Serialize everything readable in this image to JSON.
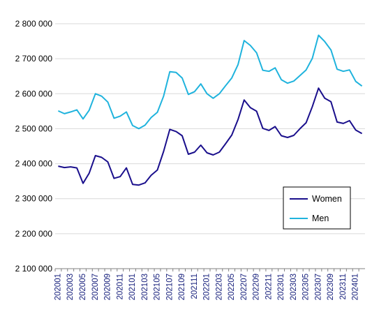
{
  "chart_data": {
    "type": "line",
    "title": "",
    "xlabel": "",
    "ylabel": "",
    "ylim": [
      2100000,
      2800000
    ],
    "yticks": [
      "2 100 000",
      "2 200 000",
      "2 300 000",
      "2 400 000",
      "2 500 000",
      "2 600 000",
      "2 700 000",
      "2 800 000"
    ],
    "yticks_values": [
      2100000,
      2200000,
      2300000,
      2400000,
      2500000,
      2600000,
      2700000,
      2800000
    ],
    "grid": true,
    "legend_position": "bottom-right",
    "x": [
      "202001",
      "202002",
      "202003",
      "202004",
      "202005",
      "202006",
      "202007",
      "202008",
      "202009",
      "202010",
      "202011",
      "202012",
      "202101",
      "202102",
      "202103",
      "202104",
      "202105",
      "202106",
      "202107",
      "202108",
      "202109",
      "202110",
      "202111",
      "202112",
      "202201",
      "202202",
      "202203",
      "202204",
      "202205",
      "202206",
      "202207",
      "202208",
      "202209",
      "202210",
      "202211",
      "202212",
      "202301",
      "202302",
      "202303",
      "202304",
      "202305",
      "202306",
      "202307",
      "202308",
      "202309",
      "202310",
      "202311",
      "202312",
      "202401",
      "202402"
    ],
    "xtick_labels": [
      "202001",
      "202003",
      "202005",
      "202007",
      "202009",
      "202011",
      "202101",
      "202103",
      "202105",
      "202107",
      "202109",
      "202111",
      "202201",
      "202203",
      "202205",
      "202207",
      "202209",
      "202211",
      "202301",
      "202303",
      "202305",
      "202307",
      "202309",
      "202311",
      "202401"
    ],
    "series": [
      {
        "name": "Women",
        "color": "#1a0f8c",
        "values": [
          2393000,
          2389000,
          2391000,
          2388000,
          2344000,
          2373000,
          2423000,
          2418000,
          2405000,
          2358000,
          2363000,
          2388000,
          2341000,
          2339000,
          2345000,
          2367000,
          2382000,
          2435000,
          2498000,
          2492000,
          2480000,
          2427000,
          2433000,
          2453000,
          2431000,
          2425000,
          2433000,
          2457000,
          2482000,
          2526000,
          2582000,
          2560000,
          2550000,
          2501000,
          2495000,
          2506000,
          2480000,
          2475000,
          2481000,
          2500000,
          2517000,
          2563000,
          2616000,
          2587000,
          2577000,
          2519000,
          2515000,
          2523000,
          2496000,
          2486000
        ]
      },
      {
        "name": "Men",
        "color": "#1fb3dd",
        "values": [
          2551000,
          2543000,
          2548000,
          2554000,
          2528000,
          2553000,
          2600000,
          2593000,
          2576000,
          2530000,
          2536000,
          2548000,
          2509000,
          2500000,
          2510000,
          2532000,
          2547000,
          2593000,
          2663000,
          2661000,
          2645000,
          2598000,
          2606000,
          2628000,
          2600000,
          2587000,
          2600000,
          2623000,
          2645000,
          2683000,
          2752000,
          2738000,
          2717000,
          2667000,
          2664000,
          2674000,
          2640000,
          2630000,
          2636000,
          2652000,
          2668000,
          2701000,
          2767000,
          2749000,
          2725000,
          2670000,
          2664000,
          2668000,
          2635000,
          2622000
        ]
      }
    ]
  }
}
